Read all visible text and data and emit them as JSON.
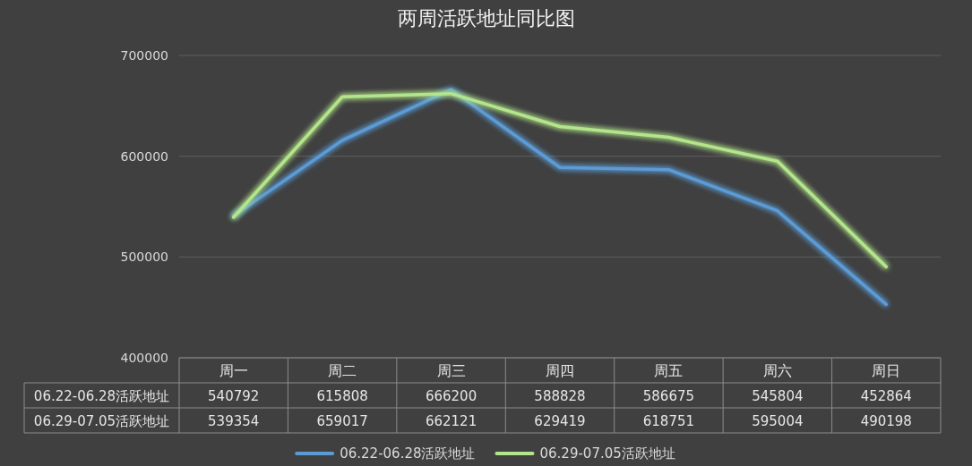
{
  "chart_data": {
    "type": "line",
    "title": "两周活跃地址同比图",
    "categories": [
      "周一",
      "周二",
      "周三",
      "周四",
      "周五",
      "周六",
      "周日"
    ],
    "series": [
      {
        "name": "06.22-06.28活跃地址",
        "color": "#5b9bd5",
        "values": [
          540792,
          615808,
          666200,
          588828,
          586675,
          545804,
          452864
        ]
      },
      {
        "name": "06.29-07.05活跃地址",
        "color": "#b3e58a",
        "values": [
          539354,
          659017,
          662121,
          629419,
          618751,
          595004,
          490198
        ]
      }
    ],
    "ylim": [
      400000,
      700000
    ],
    "yticks": [
      400000,
      500000,
      600000,
      700000
    ],
    "grid": "y",
    "legend": "bottom",
    "data_labels": true
  }
}
